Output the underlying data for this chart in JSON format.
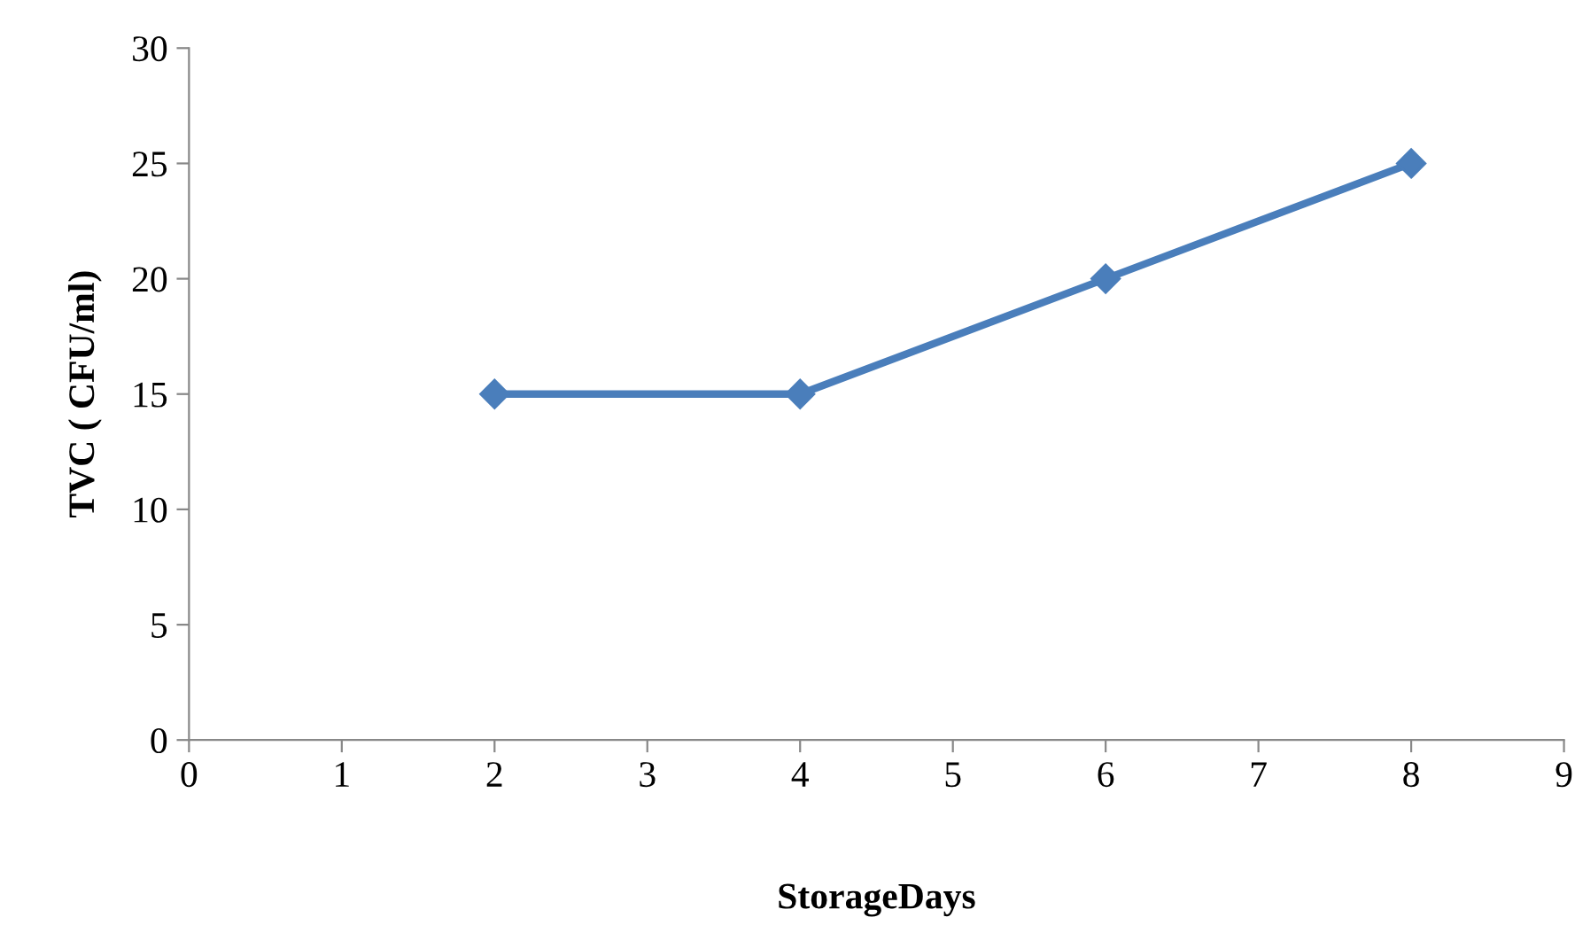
{
  "chart_data": {
    "type": "line",
    "xlabel": "StorageDays",
    "ylabel": "TVC ( CFU/ml)",
    "x": [
      2,
      4,
      6,
      8
    ],
    "series": [
      {
        "color": "#4a7ebb",
        "values": [
          15,
          15,
          20,
          25
        ]
      }
    ],
    "xlim": [
      0,
      9
    ],
    "xticks": [
      0,
      1,
      2,
      3,
      4,
      5,
      6,
      7,
      8,
      9
    ],
    "ylim": [
      0,
      30
    ],
    "yticks": [
      0,
      5,
      10,
      15,
      20,
      25,
      30
    ],
    "grid": false,
    "legend": false,
    "marker": "diamond",
    "line_style": "solid"
  }
}
